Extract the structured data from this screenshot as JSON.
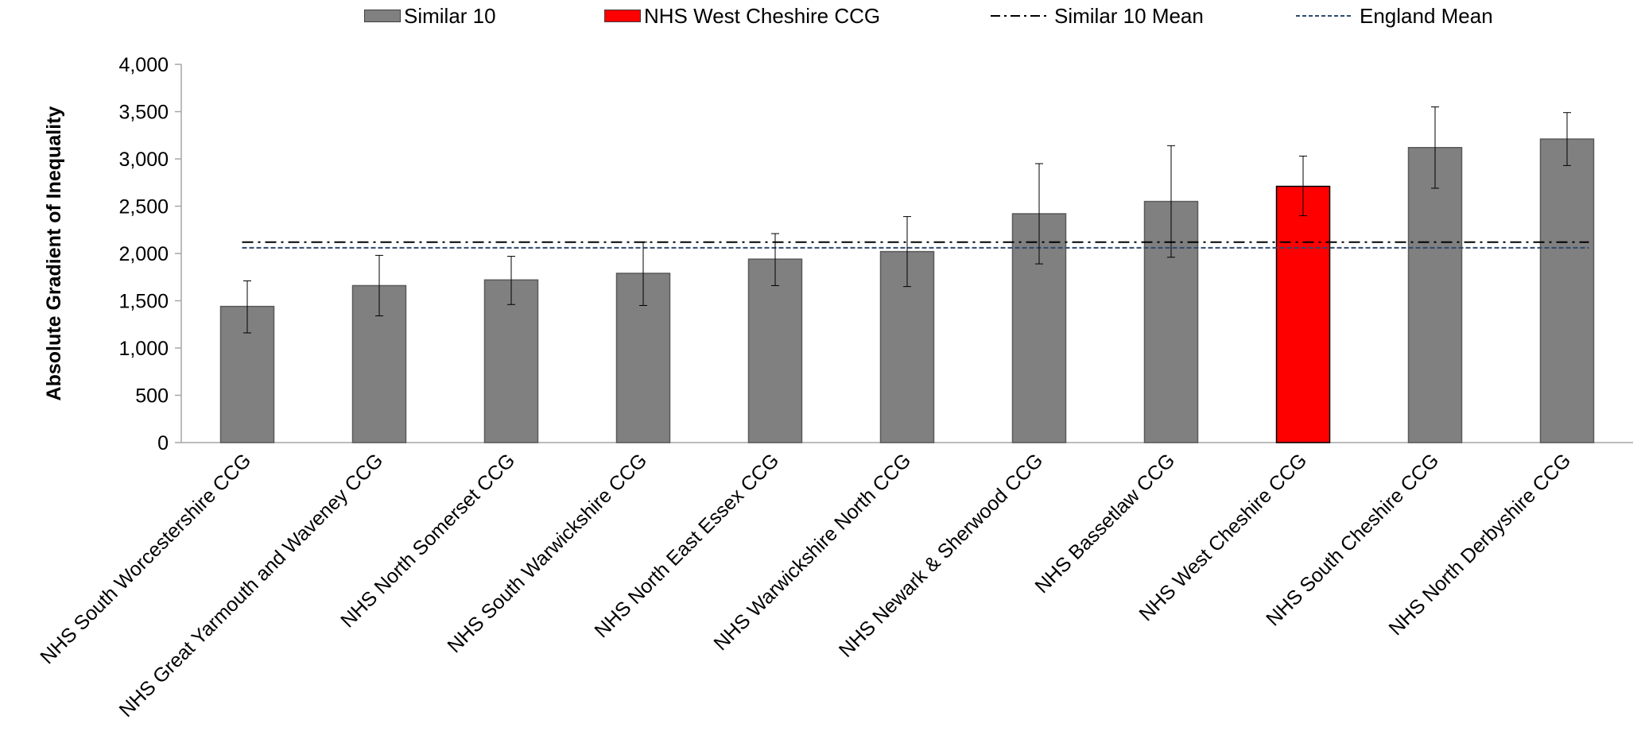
{
  "chart_data": {
    "type": "bar",
    "ylabel": "Absolute Gradient of Inequality",
    "xlabel": "",
    "ylim": [
      0,
      4000
    ],
    "yticks": [
      0,
      500,
      1000,
      1500,
      2000,
      2500,
      3000,
      3500,
      4000
    ],
    "ytick_labels": [
      "0",
      "500",
      "1,000",
      "1,500",
      "2,000",
      "2,500",
      "3,000",
      "3,500",
      "4,000"
    ],
    "categories": [
      "NHS South Worcestershire CCG",
      "NHS Great Yarmouth and Waveney CCG",
      "NHS North Somerset CCG",
      "NHS South Warwickshire CCG",
      "NHS North East Essex CCG",
      "NHS Warwickshire North CCG",
      "NHS Newark & Sherwood CCG",
      "NHS Bassetlaw CCG",
      "NHS West Cheshire CCG",
      "NHS South Cheshire CCG",
      "NHS North Derbyshire CCG"
    ],
    "values": [
      1440,
      1660,
      1720,
      1790,
      1940,
      2020,
      2420,
      2550,
      2710,
      3120,
      3210
    ],
    "error_low": [
      1160,
      1340,
      1460,
      1450,
      1660,
      1650,
      1890,
      1960,
      2400,
      2690,
      2930
    ],
    "error_high": [
      1710,
      1980,
      1970,
      2120,
      2210,
      2390,
      2950,
      3140,
      3030,
      3550,
      3490
    ],
    "highlight_index": 8,
    "series": [
      {
        "name": "Similar 10",
        "color": "#808080"
      },
      {
        "name": "NHS West Cheshire CCG",
        "color": "#ff0000"
      }
    ],
    "reference_lines": [
      {
        "name": "Similar 10 Mean",
        "value": 2120,
        "style": "dash-dot",
        "color": "#000000"
      },
      {
        "name": "England Mean",
        "value": 2060,
        "style": "dashed",
        "color": "#2e4a6e"
      }
    ],
    "legend_position": "top"
  },
  "legend": {
    "similar10": "Similar 10",
    "west_cheshire": "NHS West Cheshire CCG",
    "similar10_mean": "Similar 10 Mean",
    "england_mean": "England Mean"
  }
}
